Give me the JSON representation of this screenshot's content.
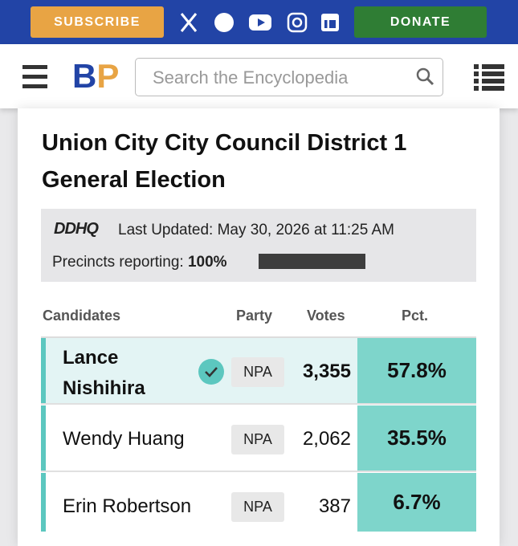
{
  "header": {
    "subscribe": "SUBSCRIBE",
    "donate": "DONATE",
    "logo": {
      "b": "B",
      "p": "P"
    },
    "search_placeholder": "Search the Encyclopedia"
  },
  "title": "Union City City Council District 1 General Election",
  "status": {
    "source": "DDHQ",
    "last_updated": "Last Updated: May 30, 2026 at 11:25 AM",
    "precincts_label": "Precincts reporting:",
    "precincts_value": "100%"
  },
  "table": {
    "columns": [
      "Candidates",
      "Party",
      "Votes",
      "Pct."
    ],
    "rows": [
      [
        "Lance Nishihira",
        "NPA",
        "3,355",
        "57.8%"
      ],
      [
        "Wendy Huang",
        "NPA",
        "2,062",
        "35.5%"
      ],
      [
        "Erin Robertson",
        "NPA",
        "387",
        "6.7%"
      ]
    ]
  }
}
